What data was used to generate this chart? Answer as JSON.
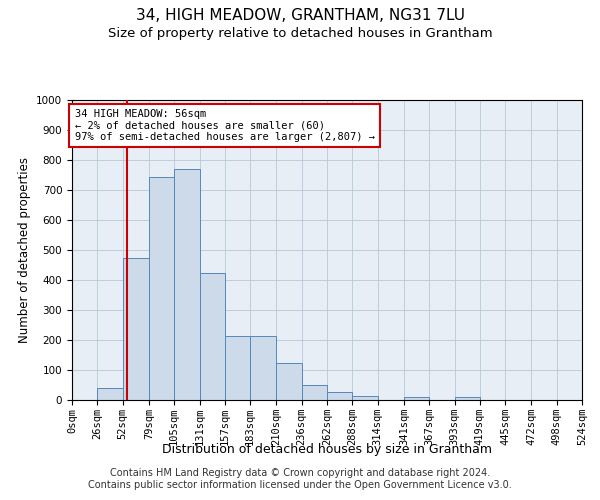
{
  "title": "34, HIGH MEADOW, GRANTHAM, NG31 7LU",
  "subtitle": "Size of property relative to detached houses in Grantham",
  "xlabel": "Distribution of detached houses by size in Grantham",
  "ylabel": "Number of detached properties",
  "footer_line1": "Contains HM Land Registry data © Crown copyright and database right 2024.",
  "footer_line2": "Contains public sector information licensed under the Open Government Licence v3.0.",
  "bin_edges": [
    0,
    26,
    52,
    79,
    105,
    131,
    157,
    183,
    210,
    236,
    262,
    288,
    314,
    341,
    367,
    393,
    419,
    445,
    472,
    498,
    524
  ],
  "bar_heights": [
    0,
    40,
    475,
    745,
    770,
    425,
    215,
    215,
    125,
    50,
    27,
    15,
    0,
    10,
    0,
    10,
    0,
    0,
    0,
    0
  ],
  "bar_color": "#ccdaea",
  "bar_edge_color": "#5588bb",
  "vline_x": 56,
  "vline_color": "#cc0000",
  "annotation_text": "34 HIGH MEADOW: 56sqm\n← 2% of detached houses are smaller (60)\n97% of semi-detached houses are larger (2,807) →",
  "annotation_box_color": "#cc0000",
  "ylim": [
    0,
    1000
  ],
  "yticks": [
    0,
    100,
    200,
    300,
    400,
    500,
    600,
    700,
    800,
    900,
    1000
  ],
  "background_color": "#ffffff",
  "plot_bg_color": "#e8eef5",
  "grid_color": "#b8c8d8",
  "title_fontsize": 11,
  "subtitle_fontsize": 9.5,
  "xlabel_fontsize": 9,
  "ylabel_fontsize": 8.5,
  "tick_fontsize": 7.5,
  "annotation_fontsize": 7.5,
  "footer_fontsize": 7
}
